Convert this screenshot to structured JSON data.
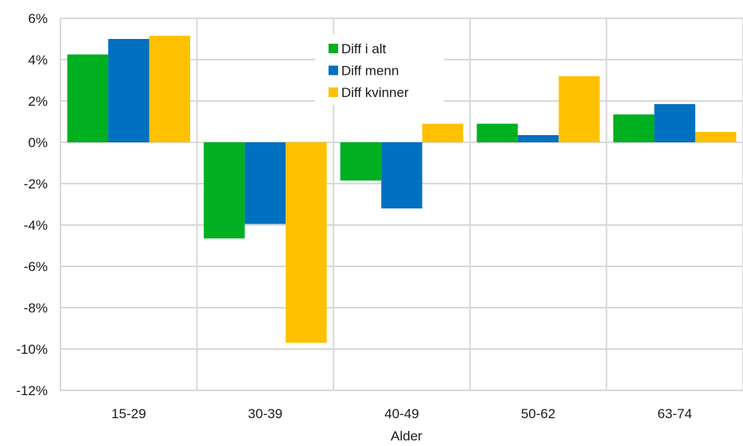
{
  "chart_data": {
    "type": "bar",
    "title": "",
    "xlabel": "Alder",
    "ylabel": "",
    "categories": [
      "15-29",
      "30-39",
      "40-49",
      "50-62",
      "63-74"
    ],
    "series": [
      {
        "name": "Diff i alt",
        "color": "#00b020",
        "values": [
          4.25,
          -4.65,
          -1.85,
          0.9,
          1.35
        ]
      },
      {
        "name": "Diff menn",
        "color": "#0070c0",
        "values": [
          5.0,
          -3.95,
          -3.2,
          0.35,
          1.85
        ]
      },
      {
        "name": "Diff kvinner",
        "color": "#ffc000",
        "values": [
          5.15,
          -9.7,
          0.9,
          3.2,
          0.5
        ]
      }
    ],
    "ylim": [
      -12,
      6
    ],
    "yticks": [
      6,
      4,
      2,
      0,
      -2,
      -4,
      -6,
      -8,
      -10,
      -12
    ],
    "ytick_format": "percent",
    "grid": true,
    "grid_axis": "both",
    "legend_position": "top-center",
    "colors": {
      "gridline": "#d9d9d9",
      "zero_line": "#d9d9d9"
    }
  }
}
